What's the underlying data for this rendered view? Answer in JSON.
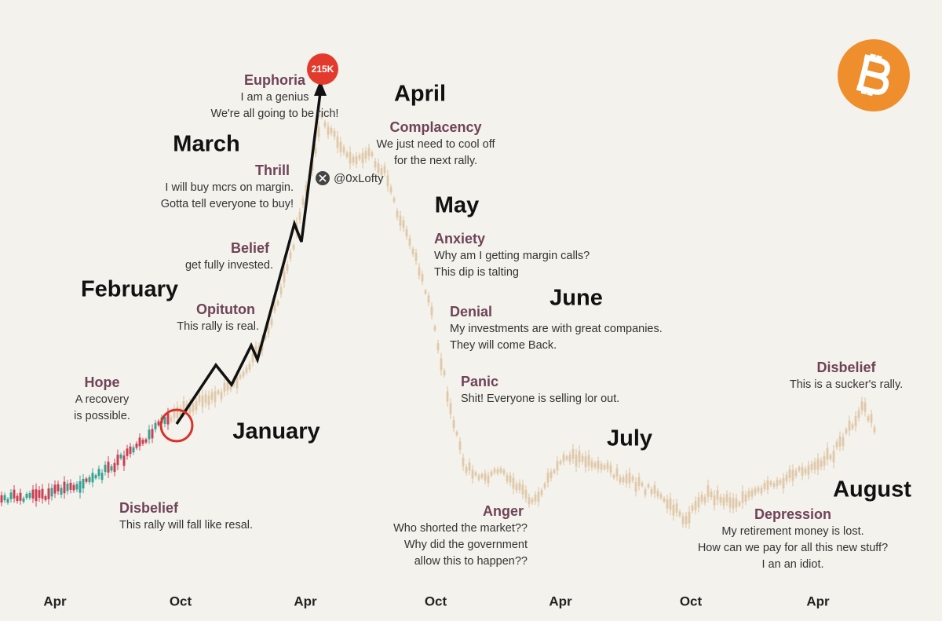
{
  "months": [
    "January",
    "February",
    "March",
    "April",
    "May",
    "June",
    "July",
    "August"
  ],
  "stages": [
    {
      "title": "Hope",
      "lines": [
        "A recovery",
        "is possible."
      ]
    },
    {
      "title": "Disbelief",
      "lines": [
        "This rally will fall like resal."
      ]
    },
    {
      "title": "Opituton",
      "lines": [
        "This rally is real."
      ]
    },
    {
      "title": "Belief",
      "lines": [
        "get fully invested."
      ]
    },
    {
      "title": "Thrill",
      "lines": [
        "I will buy mcrs on margin.",
        "Gotta tell everyone to buy!"
      ]
    },
    {
      "title": "Euphoria",
      "lines": [
        "I am a genius",
        "We're all going to be rich!"
      ]
    },
    {
      "title": "Complacency",
      "lines": [
        "We just need to cool off",
        "for the next rally."
      ]
    },
    {
      "title": "Anxiety",
      "lines": [
        "Why am I getting margin calls?",
        "This dip is talting"
      ]
    },
    {
      "title": "Denial",
      "lines": [
        "My investments are with great companies.",
        "They will come Back."
      ]
    },
    {
      "title": "Panic",
      "lines": [
        "Shit! Everyone is selling lor out."
      ]
    },
    {
      "title": "Anger",
      "lines": [
        "Who shorted the market??",
        "Why did the government",
        "allow this to happen??"
      ]
    },
    {
      "title": "Depression",
      "lines": [
        "My retirement money is lost.",
        "How can we pay for all this new stuff?",
        "I an an idiot."
      ]
    },
    {
      "title": "Disbelief",
      "lines": [
        "This is a sucker's rally."
      ]
    }
  ],
  "x_labels": [
    "Apr",
    "Oct",
    "Apr",
    "Oct",
    "Apr",
    "Oct",
    "Apr"
  ],
  "peak_badge": "215K",
  "handle": "@0xLofty"
}
